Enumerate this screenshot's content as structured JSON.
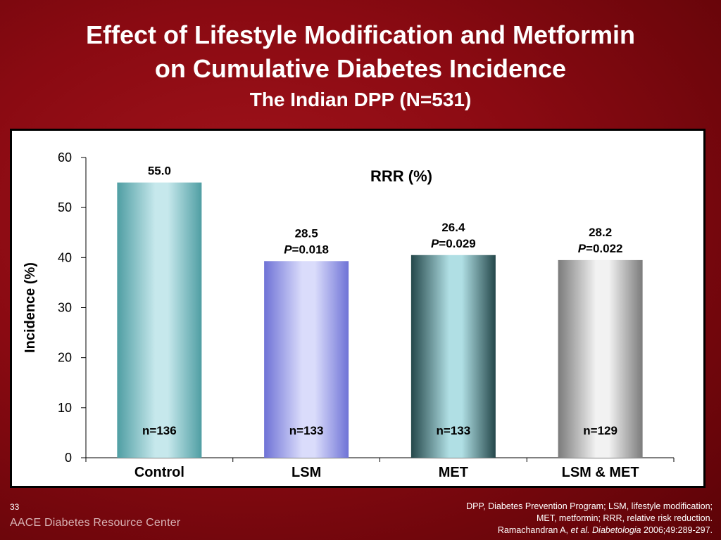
{
  "slide": {
    "title_line1": "Effect of Lifestyle Modification and Metformin",
    "title_line2": "on Cumulative Diabetes Incidence",
    "subtitle": "The Indian DPP (N=531)",
    "page_number": "33",
    "organization": "AACE Diabetes Resource Center",
    "footnote_line1": "DPP, Diabetes Prevention Program; LSM, lifestyle modification;",
    "footnote_line2": "MET, metformin; RRR, relative risk reduction.",
    "footnote_line3_author": "Ramachandran A, ",
    "footnote_line3_etal": "et al. Diabetologia",
    "footnote_line3_rest": " 2006;49:289-297."
  },
  "chart_data": {
    "type": "bar",
    "title": "",
    "ylabel": "Incidence (%)",
    "xlabel": "",
    "ylim": [
      0,
      60
    ],
    "yticks": [
      0,
      10,
      20,
      30,
      40,
      50,
      60
    ],
    "grid": false,
    "annotation_header": "RRR (%)",
    "categories": [
      "Control",
      "LSM",
      "MET",
      "LSM & MET"
    ],
    "values": [
      55.0,
      39.3,
      40.5,
      39.5
    ],
    "top_labels": [
      "55.0",
      "28.5",
      "26.4",
      "28.2"
    ],
    "p_values": [
      "",
      "=0.018",
      "=0.029",
      "=0.022"
    ],
    "p_symbol": "P",
    "n_labels": [
      "n=136",
      "n=133",
      "n=133",
      "n=129"
    ],
    "colors": {
      "control": [
        "#4f9ea3",
        "#c6e8ec"
      ],
      "lsm": [
        "#6e72d6",
        "#dadcfb"
      ],
      "met": [
        "#24474a",
        "#b0dfe4"
      ],
      "combo": [
        "#7b7b7b",
        "#f2f2f2"
      ]
    }
  }
}
